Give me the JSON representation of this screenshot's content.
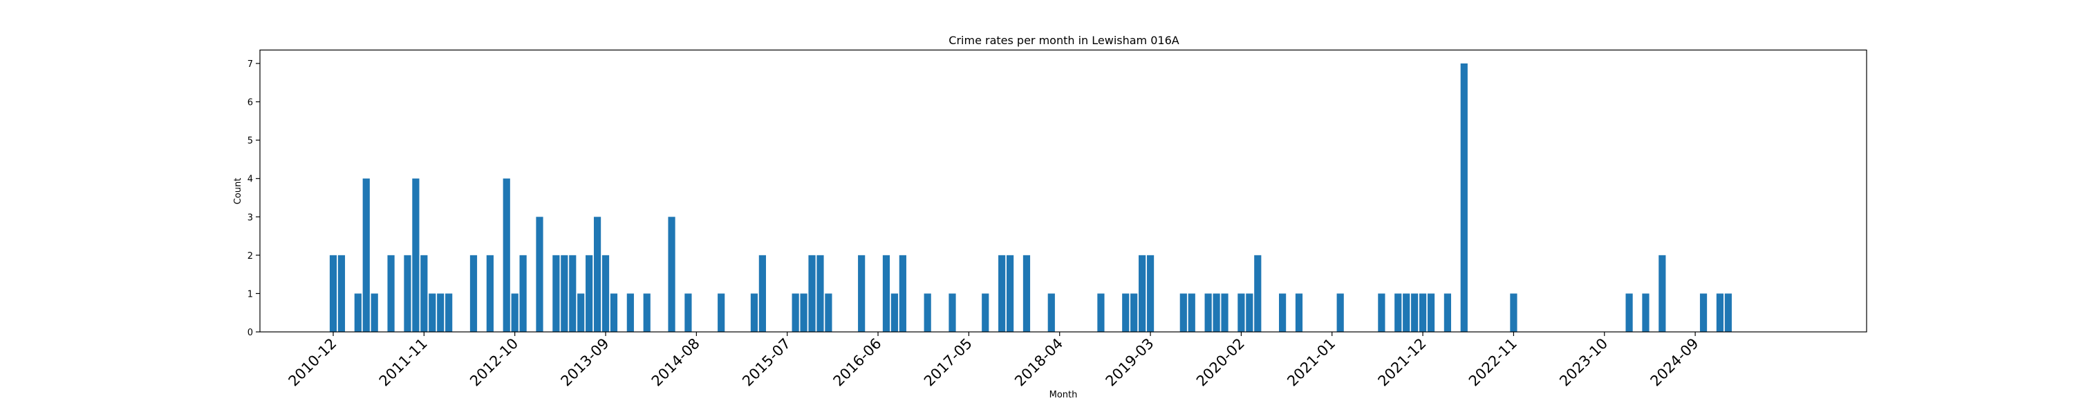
{
  "chart_data": {
    "type": "bar",
    "title": "Crime rates per month in Lewisham 016A",
    "xlabel": "Month",
    "ylabel": "Count",
    "ylim": [
      0,
      7.35
    ],
    "yticks": [
      0,
      1,
      2,
      3,
      4,
      5,
      6,
      7
    ],
    "xticks": [
      "2010-12",
      "2011-11",
      "2012-10",
      "2013-09",
      "2014-08",
      "2015-07",
      "2016-06",
      "2017-05",
      "2018-04",
      "2019-03",
      "2020-02",
      "2021-01",
      "2021-12",
      "2022-11",
      "2023-10",
      "2024-09"
    ],
    "bar_color": "#1f77b4",
    "grid": false,
    "categories": [
      "2010-12",
      "2011-01",
      "2011-03",
      "2011-04",
      "2011-05",
      "2011-07",
      "2011-09",
      "2011-10",
      "2011-11",
      "2011-12",
      "2012-01",
      "2012-02",
      "2012-05",
      "2012-07",
      "2012-09",
      "2012-10",
      "2012-11",
      "2013-01",
      "2013-03",
      "2013-04",
      "2013-05",
      "2013-06",
      "2013-07",
      "2013-08",
      "2013-09",
      "2013-10",
      "2013-12",
      "2014-02",
      "2014-05",
      "2014-07",
      "2014-11",
      "2015-03",
      "2015-04",
      "2015-08",
      "2015-09",
      "2015-10",
      "2015-11",
      "2015-12",
      "2016-04",
      "2016-07",
      "2016-08",
      "2016-09",
      "2016-12",
      "2017-03",
      "2017-07",
      "2017-09",
      "2017-10",
      "2017-12",
      "2018-03",
      "2018-09",
      "2018-12",
      "2019-01",
      "2019-02",
      "2019-03",
      "2019-07",
      "2019-08",
      "2019-10",
      "2019-11",
      "2019-12",
      "2020-02",
      "2020-03",
      "2020-04",
      "2020-07",
      "2020-09",
      "2021-02",
      "2021-07",
      "2021-09",
      "2021-10",
      "2021-11",
      "2021-12",
      "2022-01",
      "2022-03",
      "2022-05",
      "2022-11",
      "2024-01",
      "2024-03",
      "2024-05",
      "2024-10",
      "2024-12",
      "2025-01"
    ],
    "values": [
      2,
      2,
      1,
      4,
      1,
      2,
      2,
      4,
      2,
      1,
      1,
      1,
      2,
      2,
      4,
      1,
      2,
      3,
      2,
      2,
      2,
      1,
      2,
      3,
      2,
      1,
      1,
      1,
      3,
      1,
      1,
      1,
      2,
      1,
      1,
      2,
      2,
      1,
      2,
      2,
      1,
      2,
      1,
      1,
      1,
      2,
      2,
      2,
      1,
      1,
      1,
      1,
      2,
      2,
      1,
      1,
      1,
      1,
      1,
      1,
      1,
      2,
      1,
      1,
      1,
      1,
      1,
      1,
      1,
      1,
      1,
      1,
      7,
      1,
      1,
      1,
      2,
      1,
      1,
      1
    ]
  }
}
